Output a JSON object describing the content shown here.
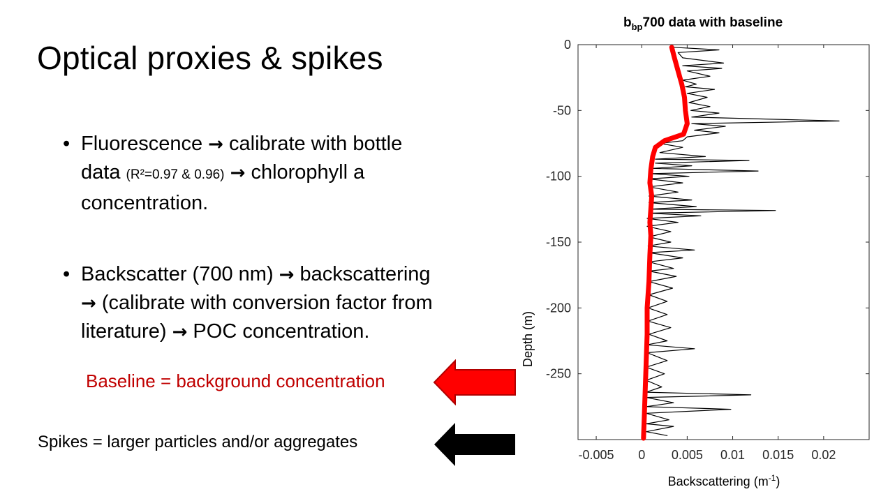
{
  "slide": {
    "title": "Optical proxies & spikes",
    "bullet1": {
      "part1": "Fluorescence",
      "part2": "calibrate with bottle",
      "part3": "data",
      "part4": "(R²=0.97 & 0.96)",
      "part5": "chlorophyll a",
      "part6": "concentration."
    },
    "bullet2": {
      "part1": "Backscatter (700 nm)",
      "part2": "backscattering",
      "part3": "(calibrate with conversion factor from",
      "part4": "literature)",
      "part5": "POC concentration."
    },
    "baseline_label": "Baseline = background concentration",
    "spikes_label": "Spikes = larger particles and/or aggregates",
    "colors": {
      "baseline": "#c00000",
      "baseline_arrow": "#ff0000",
      "spikes_arrow": "#000000",
      "spike_line": "#000000",
      "baseline_line": "#ff0000"
    },
    "icons": {
      "bullet": "bullet-dot-icon",
      "arrow": "right-arrow-icon"
    }
  },
  "chart_data": {
    "type": "line",
    "title_main": "b",
    "title_sub": "bp",
    "title_rest": "700 data with baseline",
    "xlabel": "Backscattering (m",
    "xlabel_sup": "-1",
    "xlabel_end": ")",
    "ylabel": "Depth (m)",
    "xlim": [
      -0.007,
      0.025
    ],
    "ylim": [
      -300,
      0
    ],
    "xticks": [
      -0.005,
      0,
      0.005,
      0.01,
      0.015,
      0.02
    ],
    "xtick_labels": [
      "-0.005",
      "0",
      "0.005",
      "0.01",
      "0.015",
      "0.02"
    ],
    "yticks": [
      0,
      -50,
      -100,
      -150,
      -200,
      -250
    ],
    "ytick_labels": [
      "0",
      "-50",
      "-100",
      "-150",
      "-200",
      "-250"
    ],
    "grid": false,
    "series": [
      {
        "role": "spikes",
        "color": "#000000",
        "points": [
          [
            0.0035,
            -2
          ],
          [
            0.0085,
            -4
          ],
          [
            0.004,
            -6
          ],
          [
            0.0045,
            -10
          ],
          [
            0.009,
            -14
          ],
          [
            0.0045,
            -16
          ],
          [
            0.0088,
            -18
          ],
          [
            0.005,
            -20
          ],
          [
            0.0075,
            -24
          ],
          [
            0.0045,
            -27
          ],
          [
            0.006,
            -30
          ],
          [
            0.0048,
            -32
          ],
          [
            0.008,
            -34
          ],
          [
            0.005,
            -37
          ],
          [
            0.0072,
            -40
          ],
          [
            0.0052,
            -44
          ],
          [
            0.0075,
            -47
          ],
          [
            0.0054,
            -50
          ],
          [
            0.0085,
            -52
          ],
          [
            0.0055,
            -55
          ],
          [
            0.0217,
            -58
          ],
          [
            0.0055,
            -60
          ],
          [
            0.0092,
            -62
          ],
          [
            0.0058,
            -65
          ],
          [
            0.0085,
            -67
          ],
          [
            0.005,
            -70
          ],
          [
            0.0045,
            -73
          ],
          [
            0.002,
            -75
          ],
          [
            0.0045,
            -78
          ],
          [
            0.002,
            -82
          ],
          [
            0.007,
            -85
          ],
          [
            0.0015,
            -87
          ],
          [
            0.0118,
            -88
          ],
          [
            0.0015,
            -90
          ],
          [
            0.0055,
            -92
          ],
          [
            0.0012,
            -94
          ],
          [
            0.0128,
            -96
          ],
          [
            0.001,
            -98
          ],
          [
            0.0052,
            -100
          ],
          [
            0.0008,
            -102
          ],
          [
            0.0045,
            -105
          ],
          [
            0.0008,
            -108
          ],
          [
            0.004,
            -112
          ],
          [
            0.0008,
            -115
          ],
          [
            0.0055,
            -118
          ],
          [
            0.0008,
            -120
          ],
          [
            0.006,
            -123
          ],
          [
            0.0008,
            -125
          ],
          [
            0.0147,
            -126
          ],
          [
            0.0008,
            -128
          ],
          [
            0.0065,
            -130
          ],
          [
            0.0006,
            -132
          ],
          [
            0.004,
            -135
          ],
          [
            0.0006,
            -138
          ],
          [
            0.0032,
            -142
          ],
          [
            0.0008,
            -146
          ],
          [
            0.0032,
            -150
          ],
          [
            0.0007,
            -153
          ],
          [
            0.0058,
            -156
          ],
          [
            0.0008,
            -158
          ],
          [
            0.0045,
            -162
          ],
          [
            0.0008,
            -165
          ],
          [
            0.0035,
            -170
          ],
          [
            0.0008,
            -172
          ],
          [
            0.0038,
            -176
          ],
          [
            0.0008,
            -180
          ],
          [
            0.0034,
            -185
          ],
          [
            0.0008,
            -190
          ],
          [
            0.0028,
            -195
          ],
          [
            0.0007,
            -200
          ],
          [
            0.0028,
            -205
          ],
          [
            0.0007,
            -210
          ],
          [
            0.0032,
            -215
          ],
          [
            0.0008,
            -220
          ],
          [
            0.0028,
            -225
          ],
          [
            0.0006,
            -228
          ],
          [
            0.0058,
            -231
          ],
          [
            0.0006,
            -234
          ],
          [
            0.0028,
            -240
          ],
          [
            0.0005,
            -245
          ],
          [
            0.0025,
            -250
          ],
          [
            0.0005,
            -255
          ],
          [
            0.0022,
            -260
          ],
          [
            0.0005,
            -264
          ],
          [
            0.012,
            -266
          ],
          [
            0.0005,
            -268
          ],
          [
            0.0035,
            -272
          ],
          [
            0.0005,
            -275
          ],
          [
            0.0098,
            -277
          ],
          [
            0.0005,
            -280
          ],
          [
            0.003,
            -285
          ],
          [
            0.0005,
            -288
          ],
          [
            0.0035,
            -290
          ],
          [
            0.0005,
            -294
          ],
          [
            0.0028,
            -297
          ]
        ]
      },
      {
        "role": "baseline",
        "color": "#ff0000",
        "points": [
          [
            0.0033,
            -2
          ],
          [
            0.0036,
            -10
          ],
          [
            0.004,
            -20
          ],
          [
            0.0044,
            -30
          ],
          [
            0.0047,
            -40
          ],
          [
            0.0048,
            -50
          ],
          [
            0.005,
            -60
          ],
          [
            0.0046,
            -68
          ],
          [
            0.0025,
            -73
          ],
          [
            0.0015,
            -78
          ],
          [
            0.0012,
            -85
          ],
          [
            0.001,
            -95
          ],
          [
            0.0009,
            -105
          ],
          [
            0.0011,
            -115
          ],
          [
            0.001,
            -125
          ],
          [
            0.0009,
            -135
          ],
          [
            0.001,
            -145
          ],
          [
            0.0009,
            -160
          ],
          [
            0.0008,
            -180
          ],
          [
            0.0006,
            -200
          ],
          [
            0.0006,
            -220
          ],
          [
            0.0005,
            -240
          ],
          [
            0.0004,
            -260
          ],
          [
            0.0003,
            -280
          ],
          [
            0.0002,
            -299
          ]
        ]
      }
    ]
  }
}
